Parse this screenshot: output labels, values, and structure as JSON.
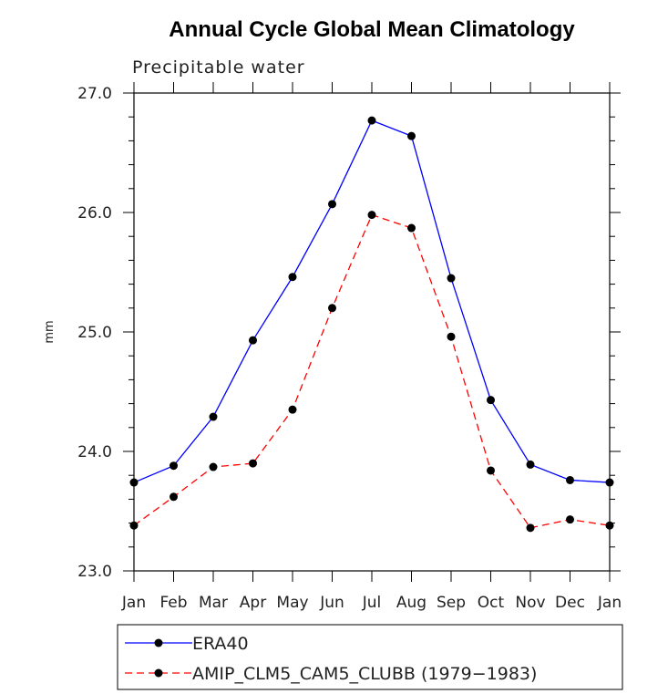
{
  "chart_data": {
    "type": "line",
    "title": "Annual Cycle Global Mean Climatology",
    "subtitle": "Precipitable water",
    "xlabel": "",
    "ylabel": "mm",
    "categories": [
      "Jan",
      "Feb",
      "Mar",
      "Apr",
      "May",
      "Jun",
      "Jul",
      "Aug",
      "Sep",
      "Oct",
      "Nov",
      "Dec",
      "Jan"
    ],
    "ylim": [
      23.0,
      27.0
    ],
    "yticks": [
      "23.0",
      "24.0",
      "25.0",
      "26.0",
      "27.0"
    ],
    "grid": false,
    "legend_position": "bottom",
    "series": [
      {
        "name": "ERA40",
        "color": "#0000ff",
        "dash": "solid",
        "values": [
          23.74,
          23.88,
          24.29,
          24.93,
          25.46,
          26.07,
          26.77,
          26.64,
          25.45,
          24.43,
          23.89,
          23.76,
          23.74
        ]
      },
      {
        "name": "AMIP_CLM5_CAM5_CLUBB (1979−1983)",
        "color": "#ff0000",
        "dash": "dashed",
        "values": [
          23.38,
          23.62,
          23.87,
          23.9,
          24.35,
          25.2,
          25.98,
          25.87,
          24.96,
          23.84,
          23.36,
          23.43,
          23.38
        ]
      }
    ]
  }
}
